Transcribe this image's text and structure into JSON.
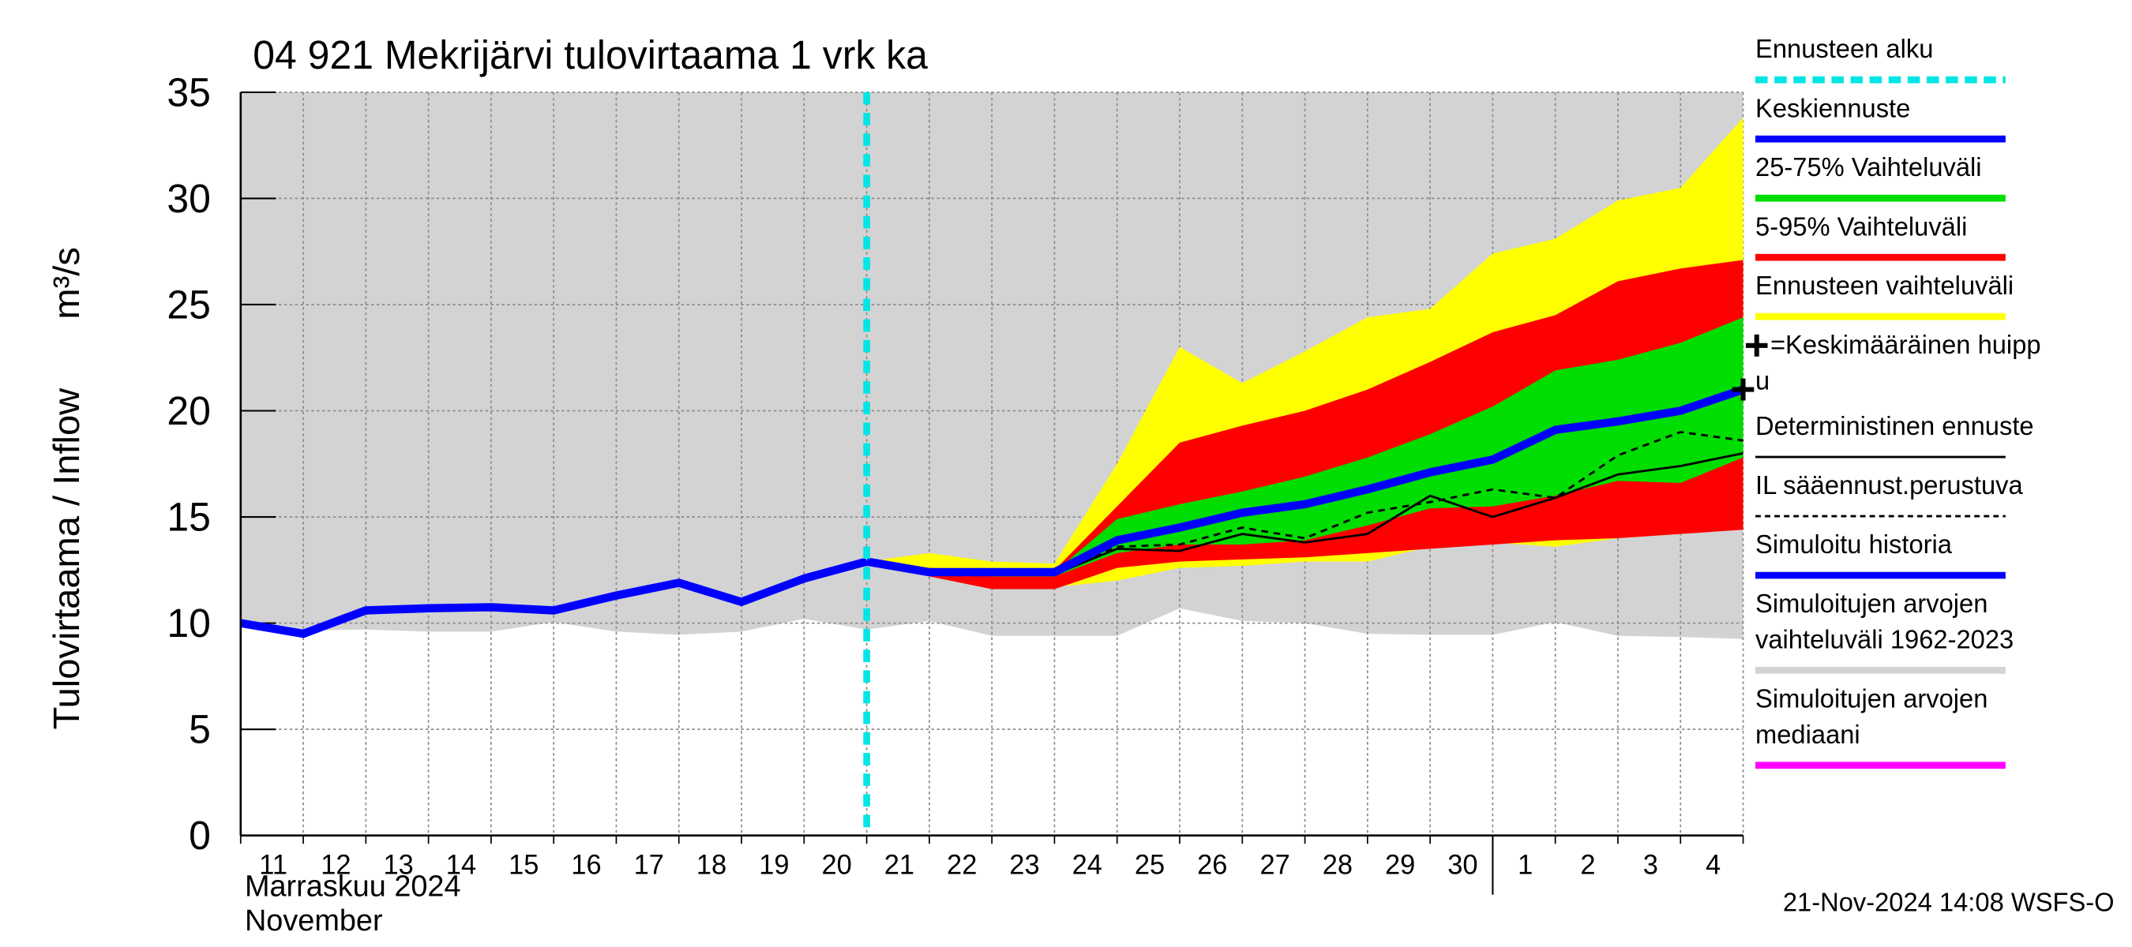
{
  "chart_data": {
    "type": "line",
    "title": "04 921 Mekrijärvi tulovirtaama 1 vrk ka",
    "y_label": "Tulovirtaama / Inflow",
    "y_unit": "m³/s",
    "month_labels": [
      "Marraskuu 2024",
      "November"
    ],
    "month_separator": 20,
    "timestamp": "21-Nov-2024 14:08 WSFS-O",
    "categories": [
      "11",
      "12",
      "13",
      "14",
      "15",
      "16",
      "17",
      "18",
      "19",
      "20",
      "21",
      "22",
      "23",
      "24",
      "25",
      "26",
      "27",
      "28",
      "29",
      "30",
      "1",
      "2",
      "3",
      "4",
      null
    ],
    "ylim": [
      0,
      35
    ],
    "yticks": [
      0,
      5,
      10,
      15,
      20,
      25,
      30,
      35
    ],
    "grid": true,
    "series": [
      {
        "name": [
          "Ennusteen alku"
        ],
        "kind": "vline",
        "color": "#00e5e5",
        "dashed": true,
        "at": 10
      },
      {
        "name": [
          "Keskiennuste"
        ],
        "kind": "line",
        "color": "#0000ff",
        "thick": true,
        "values": [
          null,
          null,
          null,
          null,
          null,
          null,
          null,
          null,
          null,
          null,
          12.9,
          12.4,
          12.4,
          12.4,
          13.9,
          14.5,
          15.2,
          15.6,
          16.3,
          17.1,
          17.7,
          19.1,
          19.5,
          20.0,
          21.0
        ]
      },
      {
        "name": [
          "25-75% Vaihteluväli"
        ],
        "kind": "band",
        "color": "#00dd00",
        "high": [
          null,
          null,
          null,
          null,
          null,
          null,
          null,
          null,
          null,
          null,
          12.9,
          12.5,
          12.4,
          12.4,
          14.9,
          15.6,
          16.2,
          16.9,
          17.8,
          18.9,
          20.2,
          21.9,
          22.4,
          23.2,
          24.4
        ],
        "low": [
          null,
          null,
          null,
          null,
          null,
          null,
          null,
          null,
          null,
          null,
          12.9,
          12.4,
          12.2,
          12.2,
          13.3,
          13.7,
          13.7,
          13.9,
          14.6,
          15.4,
          15.5,
          16.0,
          16.7,
          16.6,
          17.8
        ]
      },
      {
        "name": [
          "5-95% Vaihteluväli"
        ],
        "kind": "band",
        "color": "#ff0000",
        "high": [
          null,
          null,
          null,
          null,
          null,
          null,
          null,
          null,
          null,
          null,
          12.9,
          12.6,
          12.5,
          12.5,
          15.5,
          18.5,
          19.3,
          20.0,
          21.0,
          22.3,
          23.7,
          24.5,
          26.1,
          26.7,
          27.1
        ],
        "low": [
          null,
          null,
          null,
          null,
          null,
          null,
          null,
          null,
          null,
          null,
          12.9,
          12.2,
          11.6,
          11.6,
          12.6,
          12.9,
          13.0,
          13.1,
          13.3,
          13.5,
          13.7,
          13.9,
          14.0,
          14.2,
          14.4
        ]
      },
      {
        "name": [
          "Ennusteen vaihteluväli"
        ],
        "kind": "band",
        "color": "#ffff00",
        "high": [
          null,
          null,
          null,
          null,
          null,
          null,
          null,
          null,
          null,
          null,
          12.9,
          13.3,
          12.9,
          12.8,
          17.5,
          23.0,
          21.3,
          22.8,
          24.4,
          24.8,
          27.4,
          28.1,
          29.9,
          30.5,
          33.8
        ],
        "low": [
          null,
          null,
          null,
          null,
          null,
          null,
          null,
          null,
          null,
          null,
          12.9,
          12.3,
          11.8,
          11.7,
          12.0,
          12.6,
          12.7,
          12.9,
          12.9,
          13.6,
          13.8,
          13.6,
          14.0,
          14.2,
          14.5
        ]
      },
      {
        "name": [
          "=Keskimääräinen huipp",
          "u"
        ],
        "kind": "marker",
        "color": "#000000",
        "x": 24,
        "y": 21.0
      },
      {
        "name": [
          "Deterministinen ennuste"
        ],
        "kind": "line",
        "color": "#000000",
        "values": [
          null,
          null,
          null,
          null,
          null,
          null,
          null,
          null,
          null,
          null,
          12.9,
          12.4,
          12.3,
          12.3,
          13.5,
          13.4,
          14.2,
          13.8,
          14.2,
          16.0,
          15.0,
          15.9,
          17.0,
          17.4,
          18.0
        ]
      },
      {
        "name": [
          "IL sääennust.perustuva"
        ],
        "kind": "line",
        "color": "#000000",
        "dashed": true,
        "values": [
          null,
          null,
          null,
          null,
          null,
          null,
          null,
          null,
          null,
          null,
          12.9,
          12.4,
          12.3,
          12.3,
          13.6,
          13.7,
          14.5,
          14.0,
          15.2,
          15.7,
          16.3,
          15.9,
          17.9,
          19.0,
          18.6
        ]
      },
      {
        "name": [
          "Simuloitu historia"
        ],
        "kind": "line",
        "color": "#0000ff",
        "thick": true,
        "values": [
          10.0,
          9.5,
          10.6,
          10.7,
          10.75,
          10.6,
          11.3,
          11.9,
          11.0,
          12.1,
          12.9,
          null,
          null,
          null,
          null,
          null,
          null,
          null,
          null,
          null,
          null,
          null,
          null,
          null,
          null
        ]
      },
      {
        "name": [
          "Simuloitujen arvojen",
          "vaihteluväli 1962-2023"
        ],
        "kind": "band",
        "color": "#d3d3d3",
        "high": [
          35,
          35,
          35,
          35,
          35,
          35,
          35,
          35,
          35,
          35,
          35,
          35,
          35,
          35,
          35,
          35,
          35,
          35,
          35,
          35,
          35,
          35,
          35,
          35,
          35
        ],
        "low": [
          10.0,
          9.65,
          9.7,
          9.6,
          9.6,
          10.05,
          9.6,
          9.45,
          9.6,
          10.2,
          9.7,
          10.1,
          9.4,
          9.4,
          9.4,
          10.7,
          10.1,
          10.0,
          9.5,
          9.45,
          9.45,
          10.05,
          9.4,
          9.35,
          9.25
        ]
      },
      {
        "name": [
          "Simuloitujen arvojen",
          "mediaani"
        ],
        "kind": "legend",
        "color": "#ff00ff"
      }
    ]
  }
}
